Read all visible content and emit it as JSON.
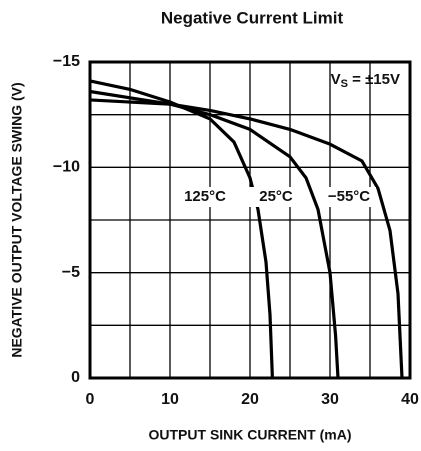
{
  "chart_data": {
    "type": "line",
    "title": "Negative Current Limit",
    "xlabel": "OUTPUT SINK CURRENT (mA)",
    "ylabel": "NEGATIVE OUTPUT VOLTAGE SWING (V)",
    "annotation": {
      "main": "V",
      "sub": "S",
      "rest": " = ±15V"
    },
    "xlim": [
      0,
      40
    ],
    "ylim": [
      0,
      -15
    ],
    "xticks": [
      0,
      10,
      20,
      30,
      40
    ],
    "yticks": [
      {
        "value": 0,
        "label": "0"
      },
      {
        "value": -5,
        "label": "−5"
      },
      {
        "value": -10,
        "label": "−10"
      },
      {
        "value": -15,
        "label": "−15"
      }
    ],
    "grid_xticks": [
      5,
      15,
      25,
      35
    ],
    "grid_yticks": [
      -2.5,
      -7.5,
      -12.5
    ],
    "grid": true,
    "series": [
      {
        "name": "125°C",
        "color": "#000000",
        "x": [
          0,
          5,
          10,
          15,
          18,
          20,
          21,
          22,
          22.5,
          22.8
        ],
        "values": [
          -14.1,
          -13.7,
          -13.1,
          -12.3,
          -11.2,
          -9.5,
          -8,
          -5.5,
          -3,
          0
        ]
      },
      {
        "name": "25°C",
        "color": "#000000",
        "x": [
          0,
          10,
          15,
          20,
          25,
          27,
          28.5,
          30,
          30.7,
          31
        ],
        "values": [
          -13.6,
          -13.0,
          -12.5,
          -11.8,
          -10.5,
          -9.5,
          -8,
          -5,
          -2,
          0
        ]
      },
      {
        "name": "−55°C",
        "color": "#000000",
        "x": [
          0,
          10,
          15,
          20,
          25,
          30,
          34,
          36,
          37.5,
          38.5,
          39
        ],
        "values": [
          -13.2,
          -13.0,
          -12.7,
          -12.3,
          -11.8,
          -11.1,
          -10.3,
          -9,
          -7,
          -4,
          0
        ]
      }
    ]
  }
}
